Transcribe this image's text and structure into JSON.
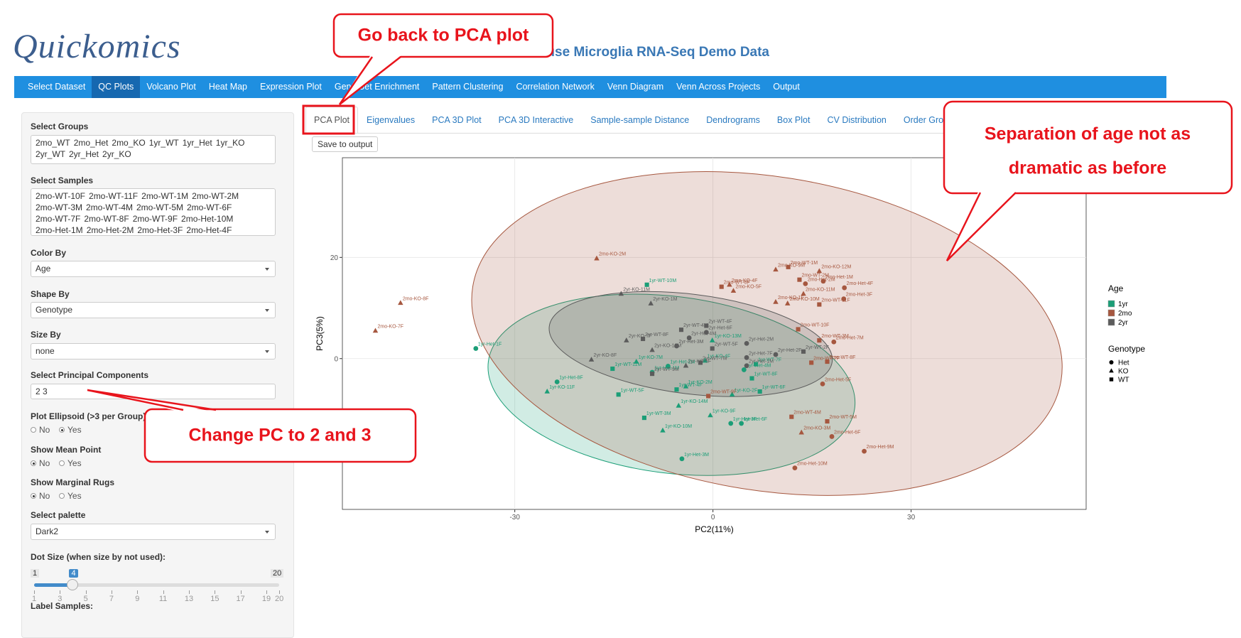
{
  "header": {
    "logo": "Quickomics",
    "title": "Mouse Microglia RNA-Seq Demo Data"
  },
  "nav": {
    "items": [
      "Select Dataset",
      "QC Plots",
      "Volcano Plot",
      "Heat Map",
      "Expression Plot",
      "Gene Set Enrichment",
      "Pattern Clustering",
      "Correlation Network",
      "Venn Diagram",
      "Venn Across Projects",
      "Output"
    ],
    "active": 1
  },
  "sidebar": {
    "groups": {
      "label": "Select Groups",
      "chips": [
        "2mo_WT",
        "2mo_Het",
        "2mo_KO",
        "1yr_WT",
        "1yr_Het",
        "1yr_KO",
        "2yr_WT",
        "2yr_Het",
        "2yr_KO"
      ]
    },
    "samples": {
      "label": "Select Samples",
      "chips": [
        "2mo-WT-10F",
        "2mo-WT-11F",
        "2mo-WT-1M",
        "2mo-WT-2M",
        "2mo-WT-3M",
        "2mo-WT-4M",
        "2mo-WT-5M",
        "2mo-WT-6F",
        "2mo-WT-7F",
        "2mo-WT-8F",
        "2mo-WT-9F",
        "2mo-Het-10M",
        "2mo-Het-1M",
        "2mo-Het-2M",
        "2mo-Het-3F",
        "2mo-Het-4F"
      ]
    },
    "selects": [
      {
        "label": "Color By",
        "value": "Age"
      },
      {
        "label": "Shape By",
        "value": "Genotype"
      },
      {
        "label": "Size By",
        "value": "none"
      }
    ],
    "pcs": {
      "label": "Select Principal Components",
      "value": "2 3"
    },
    "radios": [
      {
        "label": "Plot Ellipsoid (>3 per Group)",
        "options": [
          "No",
          "Yes"
        ],
        "selected": 1
      },
      {
        "label": "Show Mean Point",
        "options": [
          "No",
          "Yes"
        ],
        "selected": 0
      },
      {
        "label": "Show Marginal Rugs",
        "options": [
          "No",
          "Yes"
        ],
        "selected": 0
      }
    ],
    "palette": {
      "label": "Select palette",
      "value": "Dark2"
    },
    "slider": {
      "label": "Dot Size (when size by not used):",
      "min": 1,
      "max": 20,
      "value": 4,
      "ticks": [
        1,
        3,
        5,
        7,
        9,
        11,
        13,
        15,
        17,
        19,
        20
      ]
    },
    "label_samples": "Label Samples:"
  },
  "tabs": {
    "items": [
      "PCA Plot",
      "Eigenvalues",
      "PCA 3D Plot",
      "PCA 3D Interactive",
      "Sample-sample Distance",
      "Dendrograms",
      "Box Plot",
      "CV Distribution",
      "Order Groups"
    ],
    "active": 0
  },
  "save_button": "Save to output",
  "chart_data": {
    "type": "scatter",
    "xlabel": "PC2(11%)",
    "ylabel": "PC3(5%)",
    "xlim": [
      -56.1,
      56.5
    ],
    "ylim": [
      -29.8,
      39.7
    ],
    "xticks": [
      -30,
      0,
      30
    ],
    "yticks": [
      0,
      20
    ],
    "grid": true,
    "ellipse": true,
    "legend": {
      "color_title": "Age",
      "shape_title": "Genotype",
      "shapes": [
        "Het",
        "KO",
        "WT"
      ]
    },
    "series": [
      {
        "name": "1yr",
        "color": "#1b9e77",
        "labels": [
          "1yr-Het-1F",
          "1yr-WT-10M",
          "1yr-Het-8F",
          "1yr-KO-11F",
          "1yr-WT-5F",
          "1yr-WT-11M",
          "1yr-KO-7M",
          "1yr-Het-1M",
          "1yr-KO-13M",
          "1yr-WT-7F",
          "1yr-Het-4M",
          "1yr-WT-8F",
          "1yr-KO-2F",
          "1yr-WT-6F",
          "1yr-KO-14M",
          "1yr-WT-3M",
          "1yr-KO-10M",
          "1yr-KO-9F",
          "1yr-Het-3F",
          "1yr-Het-6F",
          "1yr-Het-3M",
          "1yr-KO-2M",
          "1yr-WT-4F",
          "1yr-Het-2M",
          "1yr-KO-4F"
        ],
        "x": [
          -35.9,
          -10.0,
          -23.6,
          -25.1,
          -14.3,
          -15.2,
          -11.6,
          -9.2,
          -0.1,
          6.5,
          4.7,
          5.9,
          2.9,
          7.1,
          -5.2,
          -10.4,
          -7.6,
          -0.4,
          2.7,
          4.3,
          -4.7,
          -4.1,
          -5.5,
          -6.8,
          -1.2
        ],
        "y": [
          2.0,
          14.6,
          -4.6,
          -6.5,
          -7.1,
          -2.0,
          -0.6,
          -2.7,
          3.6,
          -1.1,
          -2.2,
          -3.9,
          -7.1,
          -6.5,
          -9.3,
          -11.7,
          -14.2,
          -11.2,
          -12.8,
          -12.8,
          -19.8,
          -5.5,
          -6.1,
          -1.5,
          -0.4
        ],
        "shape": [
          0,
          2,
          0,
          1,
          2,
          2,
          1,
          0,
          1,
          2,
          0,
          2,
          1,
          2,
          1,
          2,
          1,
          1,
          0,
          0,
          0,
          1,
          2,
          0,
          1
        ]
      },
      {
        "name": "2mo",
        "color": "#a6573f",
        "labels": [
          "2mo-KO-2M",
          "2mo-KO-8F",
          "2mo-KO-7F",
          "2mo-KO-9M",
          "2mo-WT-1M",
          "2mo-KO-12M",
          "2mo-WT-2M",
          "2mo-Het-2M",
          "2mo-Het-1M",
          "2mo-Het-4F",
          "2mo-KO-4F",
          "2mo-WT-6F",
          "2mo-KO-5F",
          "2mo-KO-11M",
          "2mo-Het-3F",
          "2mo-KO-1F",
          "2mo-KO-10M",
          "2mo-WT-11F",
          "2mo-WT-10F",
          "2mo-WT-3M",
          "2mo-Het-7M",
          "2mo-WT-8F",
          "2mo-WT-7F",
          "2mo-Het-5F",
          "2mo-WT-5M",
          "2mo-WT-4M",
          "2mo-KO-3M",
          "2mo-Het-6F",
          "2mo-Het-9M",
          "2mo-Het-10M",
          "2mo-WT-9F"
        ],
        "x": [
          -17.6,
          -47.3,
          -51.1,
          9.5,
          11.4,
          16.1,
          13.1,
          14.0,
          16.7,
          19.9,
          2.5,
          1.3,
          3.1,
          13.7,
          19.8,
          9.5,
          11.3,
          16.1,
          12.9,
          16.1,
          18.3,
          17.3,
          14.9,
          16.6,
          17.3,
          11.9,
          13.4,
          18.0,
          22.9,
          12.4,
          -0.7
        ],
        "y": [
          19.8,
          11.0,
          5.5,
          17.6,
          18.1,
          17.3,
          15.6,
          14.8,
          15.3,
          14.0,
          14.6,
          14.2,
          13.4,
          12.8,
          11.8,
          11.2,
          10.9,
          10.7,
          5.8,
          3.6,
          3.3,
          -0.6,
          -0.8,
          -5.0,
          -12.4,
          -11.5,
          -14.6,
          -15.4,
          -18.3,
          -21.6,
          -7.4
        ],
        "shape": [
          1,
          1,
          1,
          1,
          2,
          1,
          2,
          0,
          0,
          0,
          1,
          2,
          1,
          1,
          0,
          1,
          1,
          2,
          2,
          2,
          0,
          2,
          2,
          0,
          2,
          2,
          1,
          0,
          0,
          0,
          2
        ]
      },
      {
        "name": "2yr",
        "color": "#5c5c5c",
        "labels": [
          "2yr-KO-11M",
          "2yr-KO-1M",
          "2yr-WT-4F",
          "2yr-Het-6F",
          "2yr-WT-4M",
          "2yr-KO-7F",
          "2yr-WT-8F",
          "2yr-Het-4M",
          "2yr-Het-3M",
          "2yr-WT-5F",
          "2yr-Het-2M",
          "2yr-Het-7F",
          "2yr-Het-2F",
          "2yr-WT-2F",
          "2yr-KO-12M",
          "2yr-KO-8F",
          "2yr-KO-5F",
          "2yr-Het-1M",
          "2yr-WT-9M",
          "2yr-WT-7M"
        ],
        "x": [
          -13.9,
          -9.4,
          -1.0,
          -1.0,
          -4.8,
          -13.1,
          -10.6,
          -3.6,
          -5.5,
          -0.1,
          5.1,
          5.1,
          9.5,
          13.7,
          -9.2,
          -18.4,
          -4.1,
          5.1,
          -9.2,
          -1.9
        ],
        "y": [
          12.8,
          10.9,
          6.5,
          5.2,
          5.7,
          3.6,
          3.9,
          4.1,
          2.5,
          2.0,
          3.0,
          0.2,
          0.8,
          1.4,
          1.7,
          -0.2,
          -1.4,
          -1.4,
          -3.0,
          -0.8
        ],
        "shape": [
          1,
          1,
          2,
          0,
          2,
          1,
          2,
          0,
          0,
          2,
          0,
          0,
          0,
          2,
          1,
          1,
          1,
          0,
          2,
          2
        ]
      }
    ]
  },
  "callouts": [
    {
      "text": "Go back to PCA plot"
    },
    {
      "lines": [
        "Separation of age not as",
        "dramatic as before"
      ]
    },
    {
      "text": "Change PC to 2 and 3"
    }
  ]
}
